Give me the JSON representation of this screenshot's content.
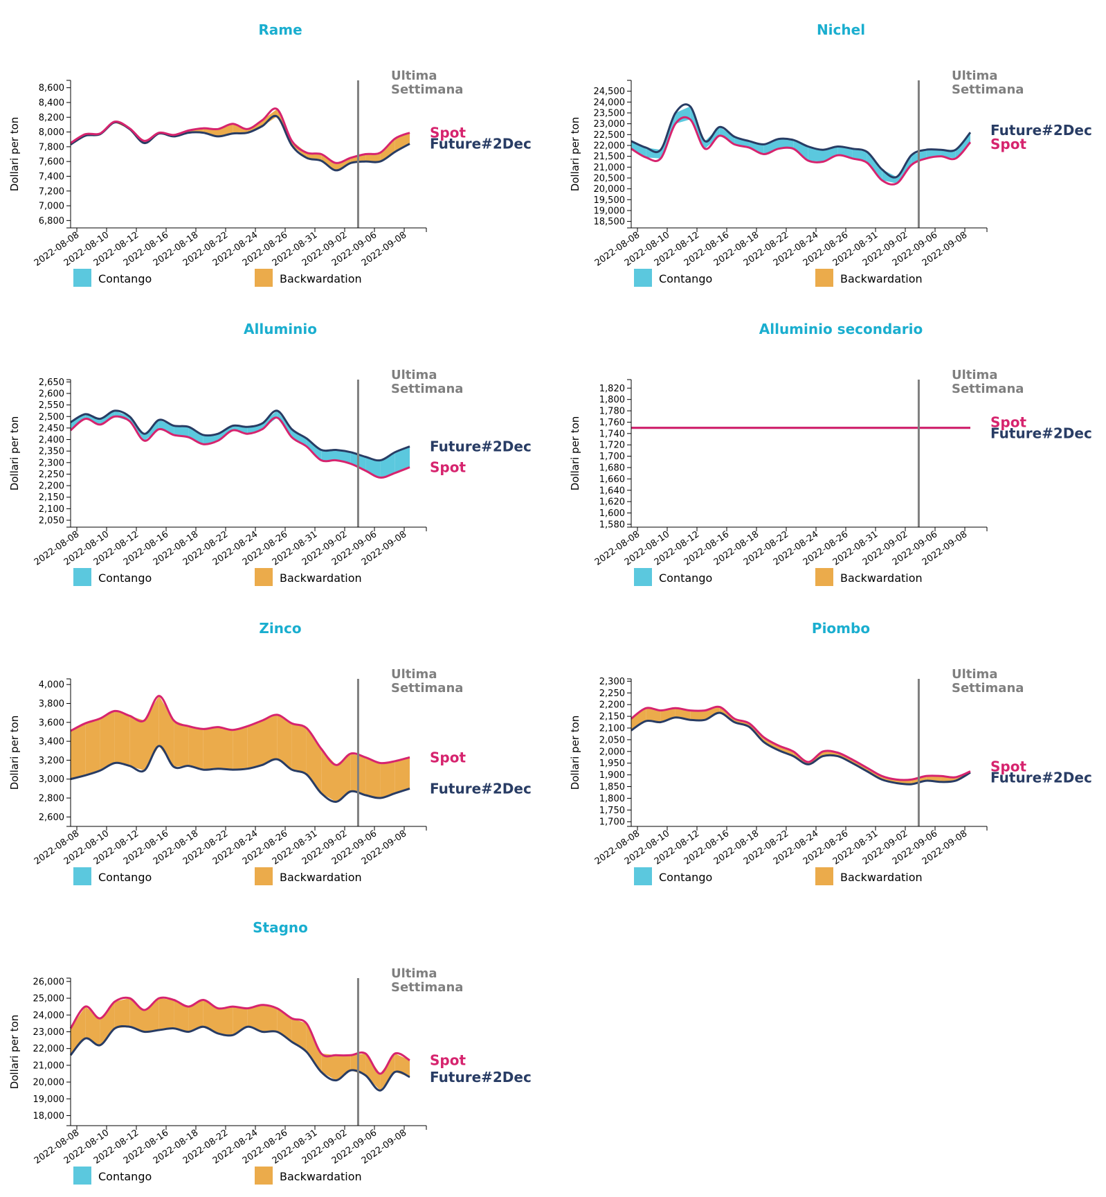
{
  "colors": {
    "title": "#1aaecf",
    "spot": "#d6246e",
    "future": "#283c64",
    "contango": "#5bc8de",
    "backwardation": "#ebab4b",
    "week_line": "#7f7f7f",
    "axis": "#000000"
  },
  "labels": {
    "y_axis": "Dollari per ton",
    "last_week": [
      "Ultima",
      "Settimana"
    ],
    "spot": "Spot",
    "future": "Future#2Dec",
    "contango": "Contango",
    "backwardation": "Backwardation"
  },
  "dates": [
    "2022-08-08",
    "2022-08-10",
    "2022-08-12",
    "2022-08-16",
    "2022-08-18",
    "2022-08-22",
    "2022-08-24",
    "2022-08-26",
    "2022-08-31",
    "2022-09-02",
    "2022-09-06",
    "2022-09-08"
  ],
  "chart_data": [
    {
      "type": "area",
      "title": "Rame",
      "ylabel": "Dollari per ton",
      "ylim": [
        6700,
        8700
      ],
      "yticks": [
        6800,
        7000,
        7200,
        7400,
        7600,
        7800,
        8000,
        8200,
        8400,
        8600
      ],
      "last_week_index": 19.5,
      "series": [
        {
          "name": "Spot",
          "values": [
            7850,
            7970,
            7980,
            8140,
            8050,
            7880,
            7990,
            7960,
            8020,
            8050,
            8040,
            8110,
            8040,
            8160,
            8310,
            7880,
            7720,
            7700,
            7580,
            7650,
            7700,
            7720,
            7910,
            7990
          ]
        },
        {
          "name": "Future#2Dec",
          "values": [
            7830,
            7950,
            7970,
            8130,
            8040,
            7850,
            7980,
            7940,
            7990,
            7990,
            7940,
            7980,
            7990,
            8080,
            8210,
            7820,
            7650,
            7610,
            7480,
            7580,
            7600,
            7600,
            7730,
            7840
          ]
        }
      ]
    },
    {
      "type": "area",
      "title": "Nichel",
      "ylabel": "Dollari per ton",
      "ylim": [
        18200,
        25000
      ],
      "yticks": [
        18500,
        19000,
        19500,
        20000,
        20500,
        21000,
        21500,
        22000,
        22500,
        23000,
        23500,
        24000,
        24500
      ],
      "last_week_index": 19.5,
      "series": [
        {
          "name": "Spot",
          "values": [
            21850,
            21450,
            21400,
            23000,
            23200,
            21850,
            22450,
            22050,
            21900,
            21600,
            21850,
            21850,
            21300,
            21250,
            21550,
            21400,
            21200,
            20400,
            20250,
            21100,
            21400,
            21500,
            21400,
            22150
          ]
        },
        {
          "name": "Future#2Dec",
          "values": [
            22200,
            21900,
            21800,
            23500,
            23800,
            22200,
            22850,
            22400,
            22200,
            22050,
            22300,
            22250,
            21950,
            21800,
            21950,
            21850,
            21700,
            20900,
            20550,
            21550,
            21800,
            21800,
            21800,
            22600
          ]
        }
      ]
    },
    {
      "type": "area",
      "title": "Alluminio",
      "ylabel": "Dollari per ton",
      "ylim": [
        2020,
        2660
      ],
      "yticks": [
        2050,
        2100,
        2150,
        2200,
        2250,
        2300,
        2350,
        2400,
        2450,
        2500,
        2550,
        2600,
        2650
      ],
      "last_week_index": 19.5,
      "series": [
        {
          "name": "Spot",
          "values": [
            2440,
            2490,
            2465,
            2500,
            2480,
            2395,
            2445,
            2420,
            2410,
            2380,
            2395,
            2440,
            2425,
            2445,
            2495,
            2410,
            2370,
            2310,
            2310,
            2295,
            2265,
            2235,
            2255,
            2280
          ]
        },
        {
          "name": "Future#2Dec",
          "values": [
            2475,
            2510,
            2490,
            2525,
            2500,
            2425,
            2485,
            2460,
            2455,
            2420,
            2425,
            2460,
            2455,
            2470,
            2525,
            2445,
            2405,
            2355,
            2355,
            2345,
            2325,
            2310,
            2345,
            2370
          ]
        }
      ]
    },
    {
      "type": "area",
      "title": "Alluminio secondario",
      "ylabel": "Dollari per ton",
      "ylim": [
        1575,
        1835
      ],
      "yticks": [
        1580,
        1600,
        1620,
        1640,
        1660,
        1680,
        1700,
        1720,
        1740,
        1760,
        1780,
        1800,
        1820
      ],
      "last_week_index": 19.5,
      "series": [
        {
          "name": "Spot",
          "values": [
            1750,
            1750,
            1750,
            1750,
            1750,
            1750,
            1750,
            1750,
            1750,
            1750,
            1750,
            1750,
            1750,
            1750,
            1750,
            1750,
            1750,
            1750,
            1750,
            1750,
            1750,
            1750,
            1750,
            1750
          ]
        },
        {
          "name": "Future#2Dec",
          "values": [
            1750,
            1750,
            1750,
            1750,
            1750,
            1750,
            1750,
            1750,
            1750,
            1750,
            1750,
            1750,
            1750,
            1750,
            1750,
            1750,
            1750,
            1750,
            1750,
            1750,
            1750,
            1750,
            1750,
            1750
          ]
        }
      ]
    },
    {
      "type": "area",
      "title": "Zinco",
      "ylabel": "Dollari per ton",
      "ylim": [
        2500,
        4060
      ],
      "yticks": [
        2600,
        2800,
        3000,
        3200,
        3400,
        3600,
        3800,
        4000
      ],
      "last_week_index": 19.5,
      "series": [
        {
          "name": "Spot",
          "values": [
            3510,
            3590,
            3640,
            3720,
            3670,
            3620,
            3880,
            3620,
            3560,
            3530,
            3550,
            3520,
            3560,
            3620,
            3680,
            3590,
            3540,
            3320,
            3150,
            3270,
            3230,
            3170,
            3190,
            3230
          ]
        },
        {
          "name": "Future#2Dec",
          "values": [
            3000,
            3040,
            3090,
            3170,
            3140,
            3090,
            3350,
            3130,
            3140,
            3100,
            3110,
            3100,
            3110,
            3150,
            3210,
            3100,
            3050,
            2850,
            2760,
            2870,
            2830,
            2800,
            2850,
            2900
          ]
        }
      ]
    },
    {
      "type": "area",
      "title": "Piombo",
      "ylabel": "Dollari per ton",
      "ylim": [
        1680,
        2310
      ],
      "yticks": [
        1700,
        1750,
        1800,
        1850,
        1900,
        1950,
        2000,
        2050,
        2100,
        2150,
        2200,
        2250,
        2300
      ],
      "last_week_index": 19.5,
      "series": [
        {
          "name": "Spot",
          "values": [
            2140,
            2185,
            2175,
            2185,
            2175,
            2175,
            2190,
            2140,
            2120,
            2060,
            2025,
            2000,
            1955,
            2000,
            1995,
            1965,
            1930,
            1895,
            1880,
            1880,
            1895,
            1895,
            1890,
            1915
          ]
        },
        {
          "name": "Future#2Dec",
          "values": [
            2090,
            2130,
            2125,
            2145,
            2135,
            2135,
            2165,
            2125,
            2105,
            2040,
            2005,
            1980,
            1945,
            1980,
            1980,
            1950,
            1915,
            1880,
            1865,
            1860,
            1875,
            1870,
            1875,
            1910
          ]
        }
      ]
    },
    {
      "type": "area",
      "title": "Stagno",
      "ylabel": "Dollari per ton",
      "ylim": [
        17400,
        26200
      ],
      "yticks": [
        18000,
        19000,
        20000,
        21000,
        22000,
        23000,
        24000,
        25000,
        26000
      ],
      "last_week_index": 19.5,
      "series": [
        {
          "name": "Spot",
          "values": [
            23200,
            24500,
            23800,
            24800,
            25000,
            24300,
            25000,
            24900,
            24500,
            24900,
            24400,
            24500,
            24400,
            24600,
            24400,
            23800,
            23500,
            21700,
            21600,
            21600,
            21700,
            20500,
            21700,
            21300
          ]
        },
        {
          "name": "Future#2Dec",
          "values": [
            21600,
            22600,
            22200,
            23200,
            23300,
            23000,
            23100,
            23200,
            23000,
            23300,
            22900,
            22800,
            23300,
            23000,
            23000,
            22400,
            21800,
            20600,
            20100,
            20700,
            20400,
            19500,
            20600,
            20300
          ]
        }
      ]
    }
  ]
}
